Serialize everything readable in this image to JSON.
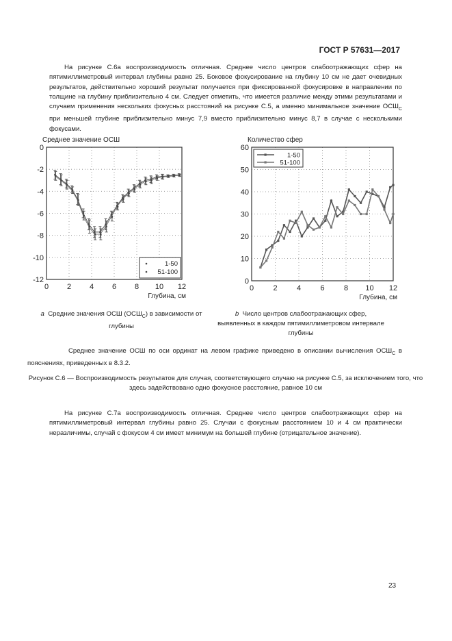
{
  "header": {
    "doc_id": "ГОСТ Р 57631—2017"
  },
  "para1": "На рисунке С.6а воспроизводимость отличная. Среднее число центров слабоотражающих сфер на пятимиллиметровый интервал глубины равно 25. Боковое фокусирование на глубину 10 см не дает очевидных результатов, действительно хороший результат получается при фиксированной фокусировке в направлении по толщине на глубину приблизительно 4 см. Следует отметить, что имеется различие между этими результатами и случаем применения нескольких фокусных расстояний на рисунке С.5, а именно минимальное значение ОСШ",
  "para1_sub": "C",
  "para1_end": " при меньшей глубине приблизительно минус 7,9 вместо приблизительно минус 8,7 в случае с несколькими фокусами.",
  "caption_a": {
    "letter": "a",
    "text": "Средние значения ОСШ (ОСШ",
    "sub": "C",
    "end": ") в зависимости от глубины"
  },
  "caption_b": {
    "letter": "b",
    "text": "Число центров слабоотражающих сфер, выявленных в каждом пятимиллиметровом интервале глубины"
  },
  "note": {
    "text": "Среднее значение ОСШ по оси ординат на левом графике приведено в описании вычисления ОСШ",
    "sub": "C",
    "end": " в пояснениях, приведенных в 8.3.2."
  },
  "figure_caption": "Рисунок С.6 — Воспроизводимость результатов для случая, соответствующего случаю на рисунке С.5, за исключением того, что здесь задействовано одно фокусное расстояние, равное 10 см",
  "para2": "На рисунке С.7а воспроизводимость отличная. Среднее число центров слабоотражающих сфер на пятимиллиметровый интервал глубины равно 25. Случаи с фокусным расстоянием 10 и 4 см практически неразличимы, случай с фокусом 4 см имеет минимум на большей глубине (отрицательное значение).",
  "page_number": "23",
  "chart_data": [
    {
      "type": "line",
      "title": "Среднее значение ОСШ",
      "xlabel": "Глубина, см",
      "ylabel": "",
      "xlim": [
        0,
        12
      ],
      "ylim": [
        -12,
        0
      ],
      "xticks": [
        "0",
        "2",
        "4",
        "6",
        "8",
        "10",
        "12"
      ],
      "yticks": [
        "0",
        "-2",
        "-4",
        "-6",
        "-8",
        "-10",
        "-12"
      ],
      "grid": true,
      "legend": "bottom-right",
      "x": [
        0.75,
        1.25,
        1.75,
        2.25,
        2.75,
        3.25,
        3.75,
        4.25,
        4.75,
        5.25,
        5.75,
        6.25,
        6.75,
        7.25,
        7.75,
        8.25,
        8.75,
        9.25,
        9.75,
        10.25,
        10.75,
        11.25,
        11.75
      ],
      "series": [
        {
          "name": "1-50",
          "values": [
            -2.5,
            -2.9,
            -3.3,
            -3.8,
            -4.7,
            -6.0,
            -7.0,
            -7.7,
            -7.7,
            -7.0,
            -6.1,
            -5.3,
            -4.6,
            -4.1,
            -3.7,
            -3.3,
            -3.0,
            -2.9,
            -2.7,
            -2.65,
            -2.6,
            -2.55,
            -2.5
          ],
          "err": [
            0.4,
            0.5,
            0.4,
            0.3,
            0.5,
            0.4,
            0.5,
            0.5,
            0.5,
            0.5,
            0.3,
            0.3,
            0.3,
            0.3,
            0.3,
            0.3,
            0.3,
            0.3,
            0.2,
            0.2,
            0.1,
            0.1,
            0.1
          ]
        },
        {
          "name": "51-100",
          "values": [
            -2.6,
            -3.0,
            -3.4,
            -3.9,
            -4.8,
            -6.2,
            -7.2,
            -7.9,
            -7.9,
            -7.2,
            -6.3,
            -5.4,
            -4.7,
            -4.2,
            -3.8,
            -3.4,
            -3.1,
            -3.0,
            -2.8,
            -2.7,
            -2.65,
            -2.6,
            -2.55
          ],
          "err": [
            0.4,
            0.5,
            0.4,
            0.3,
            0.5,
            0.4,
            0.6,
            0.5,
            0.5,
            0.5,
            0.4,
            0.3,
            0.3,
            0.3,
            0.3,
            0.3,
            0.3,
            0.3,
            0.2,
            0.2,
            0.1,
            0.1,
            0.1
          ]
        }
      ]
    },
    {
      "type": "line",
      "title": "Количество сфер",
      "xlabel": "Глубина, см",
      "ylabel": "",
      "xlim": [
        0,
        12
      ],
      "ylim": [
        0,
        60
      ],
      "xticks": [
        "0",
        "2",
        "4",
        "6",
        "8",
        "10",
        "12"
      ],
      "yticks": [
        "60",
        "50",
        "40",
        "30",
        "20",
        "10",
        "0"
      ],
      "grid": true,
      "legend": "top-left",
      "x": [
        0.75,
        1.25,
        1.75,
        2.25,
        2.75,
        3.25,
        3.75,
        4.25,
        4.75,
        5.25,
        5.75,
        6.25,
        6.75,
        7.25,
        7.75,
        8.25,
        8.75,
        9.25,
        9.75,
        10.25,
        10.75,
        11.25,
        11.75,
        12
      ],
      "series": [
        {
          "name": "1-50",
          "values": [
            6,
            14,
            16,
            18,
            25,
            22,
            27,
            20,
            24,
            28,
            24,
            27,
            36,
            29,
            31,
            41,
            38,
            35,
            40,
            39,
            38,
            33,
            42,
            43
          ]
        },
        {
          "name": "51-100",
          "values": [
            6,
            9,
            15,
            22,
            19,
            27,
            26,
            31,
            25,
            23,
            24,
            29,
            24,
            33,
            30,
            36,
            34,
            30,
            30,
            41,
            38,
            32,
            26,
            30
          ]
        }
      ]
    }
  ]
}
